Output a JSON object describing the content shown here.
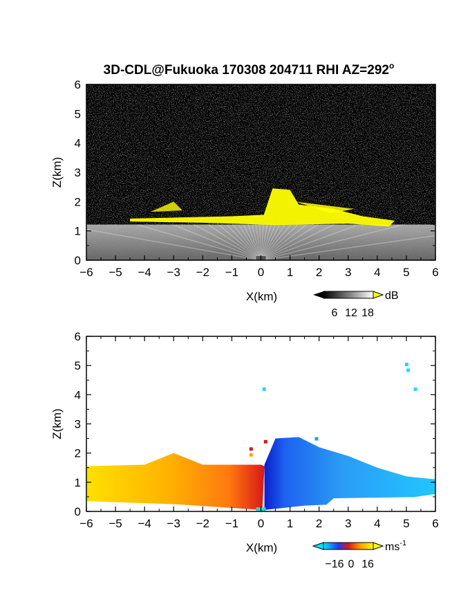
{
  "title": "3D-CDL@Fukuoka 170308 204711 RHI AZ=292",
  "title_sup": "o",
  "chart_data": [
    {
      "type": "heatmap",
      "panel": "reflectivity",
      "xlabel": "X(km)",
      "ylabel": "Z(km)",
      "xlim": [
        -6,
        6
      ],
      "ylim": [
        0,
        6
      ],
      "xticks": [
        "-6",
        "-5",
        "-4",
        "-3",
        "-2",
        "-1",
        "0",
        "1",
        "2",
        "3",
        "4",
        "5",
        "6"
      ],
      "yticks": [
        "0",
        "1",
        "2",
        "3",
        "4",
        "5",
        "6"
      ],
      "colorbar": {
        "unit": "dB",
        "ticks": [
          "6",
          "12",
          "18"
        ],
        "colors": [
          "#000000",
          "#7f7f7f",
          "#ffffff",
          "#ffff00"
        ]
      },
      "background_color": "#2a2a2a",
      "layer_top_km": [
        [
          -6,
          1.55
        ],
        [
          -5,
          1.5
        ],
        [
          -4,
          1.45
        ],
        [
          -3,
          1.45
        ],
        [
          -2,
          1.45
        ],
        [
          -1,
          1.45
        ],
        [
          0,
          1.5
        ],
        [
          0.5,
          2.4
        ],
        [
          1,
          2.5
        ],
        [
          2,
          2.05
        ],
        [
          3,
          1.8
        ],
        [
          4,
          1.6
        ],
        [
          4.5,
          1.3
        ],
        [
          6,
          1.2
        ]
      ],
      "high_echo_color": "#ffff00"
    },
    {
      "type": "heatmap",
      "panel": "doppler_velocity",
      "xlabel": "X(km)",
      "ylabel": "Z(km)",
      "xlim": [
        -6,
        6
      ],
      "ylim": [
        0,
        6
      ],
      "xticks": [
        "-6",
        "-5",
        "-4",
        "-3",
        "-2",
        "-1",
        "0",
        "1",
        "2",
        "3",
        "4",
        "5",
        "6"
      ],
      "yticks": [
        "0",
        "1",
        "2",
        "3",
        "4",
        "5",
        "6"
      ],
      "colorbar": {
        "unit": "ms",
        "unit_exp": "-1",
        "ticks": [
          "-16",
          "0",
          "16"
        ],
        "colors": [
          "#00e5ff",
          "#0a1fd0",
          "#d81818",
          "#ffa500",
          "#ffff00"
        ]
      },
      "layer_top_km": [
        [
          -6,
          1.55
        ],
        [
          -4,
          1.6
        ],
        [
          -3,
          2.0
        ],
        [
          -2,
          1.6
        ],
        [
          0,
          1.6
        ],
        [
          0.5,
          2.5
        ],
        [
          1.3,
          2.55
        ],
        [
          2,
          2.2
        ],
        [
          3,
          1.9
        ],
        [
          4,
          1.5
        ],
        [
          5,
          1.2
        ],
        [
          6,
          1.1
        ]
      ]
    }
  ]
}
